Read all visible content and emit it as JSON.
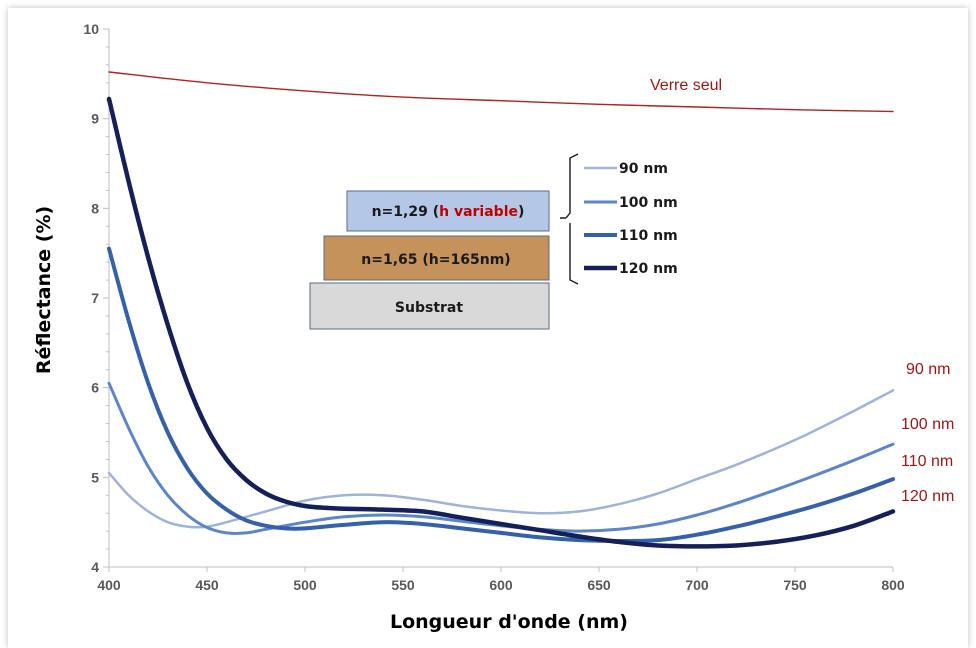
{
  "chart_data": {
    "type": "line",
    "title": "",
    "xlabel": "Longueur d'onde (nm)",
    "ylabel": "Réflectance (%)",
    "xlim": [
      400,
      800
    ],
    "ylim": [
      4,
      10
    ],
    "xticks": [
      400,
      450,
      500,
      550,
      600,
      650,
      700,
      750,
      800
    ],
    "yticks": [
      4,
      5,
      6,
      7,
      8,
      9,
      10
    ],
    "grid": false,
    "series": [
      {
        "name": "Verre seul",
        "color": "#b22222",
        "x": [
          400,
          450,
          500,
          550,
          600,
          650,
          700,
          750,
          800
        ],
        "y": [
          9.52,
          9.4,
          9.31,
          9.24,
          9.2,
          9.16,
          9.13,
          9.1,
          9.08
        ]
      },
      {
        "name": "90 nm",
        "color": "#9db3da",
        "x": [
          400,
          410,
          420,
          430,
          440,
          450,
          460,
          480,
          500,
          520,
          540,
          560,
          580,
          600,
          620,
          640,
          660,
          680,
          700,
          720,
          740,
          760,
          780,
          800
        ],
        "y": [
          5.05,
          4.8,
          4.62,
          4.5,
          4.45,
          4.45,
          4.5,
          4.62,
          4.74,
          4.8,
          4.8,
          4.75,
          4.68,
          4.63,
          4.6,
          4.62,
          4.7,
          4.82,
          4.98,
          5.14,
          5.32,
          5.52,
          5.74,
          5.97
        ]
      },
      {
        "name": "100 nm",
        "color": "#5c86c8",
        "x": [
          400,
          410,
          420,
          430,
          440,
          450,
          460,
          470,
          480,
          500,
          520,
          540,
          560,
          580,
          600,
          620,
          640,
          660,
          680,
          700,
          720,
          740,
          760,
          780,
          800
        ],
        "y": [
          6.05,
          5.55,
          5.12,
          4.8,
          4.58,
          4.44,
          4.38,
          4.38,
          4.42,
          4.5,
          4.56,
          4.58,
          4.56,
          4.51,
          4.46,
          4.42,
          4.4,
          4.42,
          4.48,
          4.58,
          4.71,
          4.86,
          5.02,
          5.19,
          5.37
        ]
      },
      {
        "name": "110 nm",
        "color": "#3461a9",
        "x": [
          400,
          410,
          420,
          430,
          440,
          450,
          460,
          470,
          480,
          490,
          500,
          520,
          540,
          560,
          580,
          600,
          620,
          640,
          660,
          680,
          700,
          720,
          740,
          760,
          780,
          800
        ],
        "y": [
          7.55,
          6.75,
          6.05,
          5.5,
          5.1,
          4.82,
          4.64,
          4.52,
          4.46,
          4.43,
          4.43,
          4.47,
          4.5,
          4.48,
          4.43,
          4.38,
          4.33,
          4.3,
          4.29,
          4.3,
          4.36,
          4.45,
          4.56,
          4.68,
          4.82,
          4.98
        ]
      },
      {
        "name": "120 nm",
        "color": "#15205a",
        "x": [
          400,
          410,
          420,
          430,
          440,
          450,
          460,
          470,
          480,
          490,
          500,
          510,
          520,
          540,
          560,
          580,
          600,
          620,
          640,
          660,
          680,
          700,
          720,
          740,
          760,
          780,
          800
        ],
        "y": [
          9.22,
          8.3,
          7.45,
          6.7,
          6.05,
          5.55,
          5.2,
          4.97,
          4.82,
          4.73,
          4.68,
          4.66,
          4.65,
          4.64,
          4.62,
          4.55,
          4.48,
          4.41,
          4.34,
          4.28,
          4.24,
          4.23,
          4.24,
          4.28,
          4.35,
          4.46,
          4.62
        ]
      }
    ],
    "curve_labels": [
      "Verre seul",
      "90 nm",
      "100 nm",
      "110 nm",
      "120 nm"
    ]
  },
  "inset": {
    "layers": [
      {
        "prefix": "n=1,29 (",
        "highlight": "h variable",
        "suffix": ")",
        "color": "#b4c7e7"
      },
      {
        "text": "n=1,65 (h=165nm)",
        "color": "#c5925c"
      },
      {
        "text": "Substrat",
        "color": "#d9d9d9"
      }
    ],
    "legend": [
      {
        "label": "90 nm",
        "color": "#9db3da"
      },
      {
        "label": "100 nm",
        "color": "#5c86c8"
      },
      {
        "label": "110 nm",
        "color": "#3461a9"
      },
      {
        "label": "120 nm",
        "color": "#15205a"
      }
    ]
  }
}
